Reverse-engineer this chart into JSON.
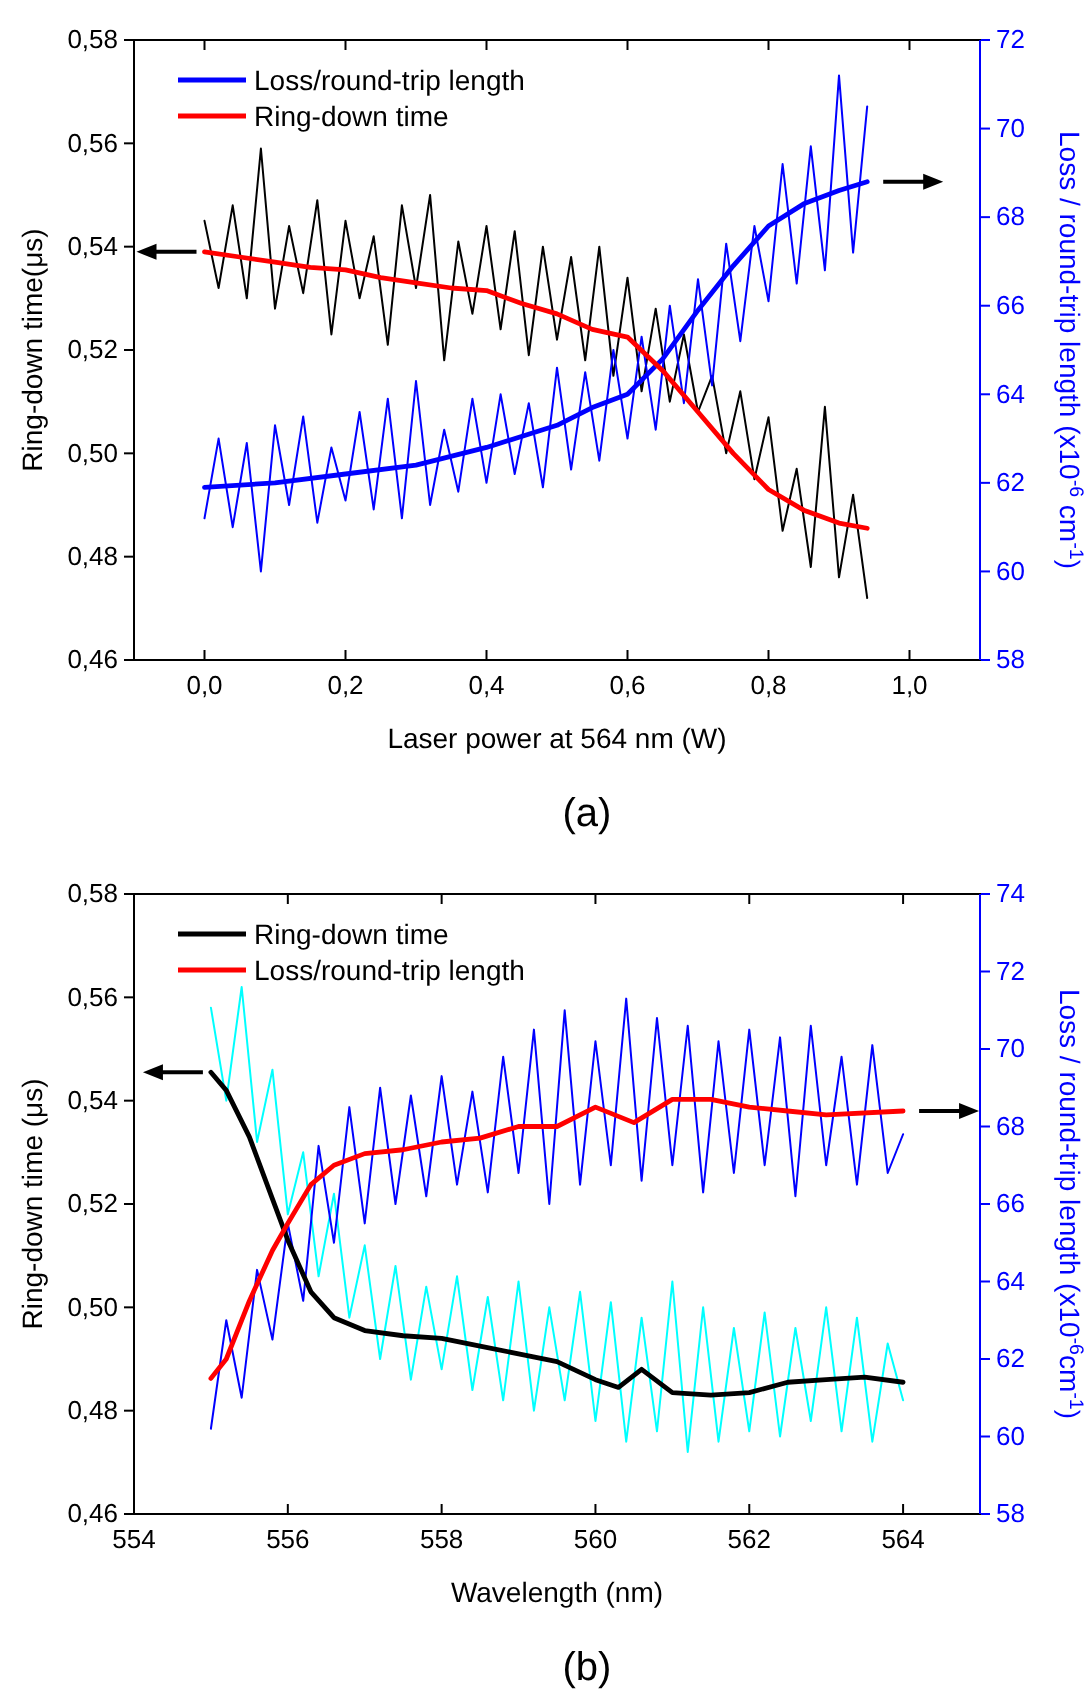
{
  "chart_data": [
    {
      "type": "line",
      "xlabel": "Laser power  at  564 nm (W)",
      "ylabel": "Ring-down time(μs)",
      "y2label": "Loss / round-trip length (x10$^{-6}$ cm$^{-1}$)",
      "annotations": [
        "(a)"
      ],
      "xlim": [
        -0.1,
        1.1
      ],
      "xticks": [
        {
          "value": 0,
          "label": "0,0"
        },
        {
          "value": 0.2,
          "label": "0,2"
        },
        {
          "value": 0.4,
          "label": "0,4"
        },
        {
          "value": 0.6,
          "label": "0,6"
        },
        {
          "value": 0.8,
          "label": "0,8"
        },
        {
          "value": 1,
          "label": "1,0"
        }
      ],
      "ylim": [
        0.46,
        0.58
      ],
      "yticks": [
        {
          "value": 0.46,
          "label": "0,46"
        },
        {
          "value": 0.48,
          "label": "0,48"
        },
        {
          "value": 0.5,
          "label": "0,50"
        },
        {
          "value": 0.52,
          "label": "0,52"
        },
        {
          "value": 0.54,
          "label": "0,54"
        },
        {
          "value": 0.56,
          "label": "0,56"
        },
        {
          "value": 0.58,
          "label": "0,58"
        }
      ],
      "y2lim": [
        58,
        72
      ],
      "y2ticks": [
        58,
        60,
        62,
        64,
        66,
        68,
        70,
        72
      ],
      "grid": false,
      "legend": "top left",
      "marker": "none",
      "line_style": "solid",
      "series": [
        {
          "color": "#000000",
          "x": [
            0,
            0.02,
            0.04,
            0.06,
            0.08,
            0.1,
            0.12,
            0.14,
            0.16,
            0.18,
            0.2,
            0.22,
            0.24,
            0.26,
            0.28,
            0.3,
            0.32,
            0.34,
            0.36,
            0.38,
            0.4,
            0.42,
            0.44,
            0.46,
            0.48,
            0.5,
            0.52,
            0.54,
            0.56,
            0.58,
            0.6,
            0.62,
            0.64,
            0.66,
            0.68,
            0.7,
            0.72,
            0.74,
            0.76,
            0.78,
            0.8,
            0.82,
            0.84,
            0.86,
            0.88,
            0.9,
            0.92,
            0.94
          ],
          "values": [
            0.545,
            0.532,
            0.548,
            0.53,
            0.559,
            0.528,
            0.544,
            0.531,
            0.549,
            0.523,
            0.545,
            0.53,
            0.542,
            0.521,
            0.548,
            0.532,
            0.55,
            0.518,
            0.541,
            0.527,
            0.544,
            0.524,
            0.543,
            0.519,
            0.54,
            0.522,
            0.538,
            0.518,
            0.54,
            0.515,
            0.534,
            0.512,
            0.528,
            0.51,
            0.523,
            0.508,
            0.515,
            0.5,
            0.512,
            0.495,
            0.507,
            0.485,
            0.497,
            0.478,
            0.509,
            0.476,
            0.492,
            0.472
          ]
        },
        {
          "color": "#0000ff",
          "axis": "y2",
          "x": [
            0,
            0.02,
            0.04,
            0.06,
            0.08,
            0.1,
            0.12,
            0.14,
            0.16,
            0.18,
            0.2,
            0.22,
            0.24,
            0.26,
            0.28,
            0.3,
            0.32,
            0.34,
            0.36,
            0.38,
            0.4,
            0.42,
            0.44,
            0.46,
            0.48,
            0.5,
            0.52,
            0.54,
            0.56,
            0.58,
            0.6,
            0.62,
            0.64,
            0.66,
            0.68,
            0.7,
            0.72,
            0.74,
            0.76,
            0.78,
            0.8,
            0.82,
            0.84,
            0.86,
            0.88,
            0.9,
            0.92,
            0.94
          ],
          "values": [
            61.2,
            63,
            61,
            62.9,
            60,
            63.3,
            61.5,
            63.5,
            61.1,
            62.8,
            61.6,
            63.6,
            61.4,
            63.9,
            61.2,
            64.3,
            61.5,
            63.2,
            61.8,
            63.9,
            62,
            64,
            62.2,
            63.8,
            61.9,
            64.6,
            62.3,
            64.5,
            62.5,
            65,
            63,
            65.3,
            63.2,
            66,
            63.8,
            66.6,
            64.2,
            67.4,
            65.2,
            67.8,
            66.1,
            69.2,
            66.5,
            69.6,
            66.8,
            71.2,
            67.2,
            70.5
          ]
        },
        {
          "name": "Loss/round-trip length",
          "color": "#0000ff",
          "axis": "y2",
          "x": [
            0,
            0.1,
            0.2,
            0.3,
            0.4,
            0.5,
            0.55,
            0.6,
            0.65,
            0.7,
            0.75,
            0.8,
            0.85,
            0.9,
            0.94
          ],
          "values": [
            61.9,
            62,
            62.2,
            62.4,
            62.8,
            63.3,
            63.7,
            64,
            64.8,
            65.9,
            66.9,
            67.8,
            68.3,
            68.6,
            68.8
          ]
        },
        {
          "name": "Ring-down time",
          "color": "#ff0000",
          "x": [
            0,
            0.05,
            0.1,
            0.15,
            0.2,
            0.25,
            0.3,
            0.35,
            0.4,
            0.45,
            0.5,
            0.55,
            0.6,
            0.65,
            0.7,
            0.75,
            0.8,
            0.85,
            0.9,
            0.94
          ],
          "values": [
            0.539,
            0.538,
            0.537,
            0.536,
            0.5355,
            0.534,
            0.533,
            0.532,
            0.5315,
            0.529,
            0.527,
            0.524,
            0.5225,
            0.516,
            0.508,
            0.5,
            0.493,
            0.489,
            0.4865,
            0.4855
          ]
        }
      ]
    },
    {
      "type": "line",
      "xlabel": "Wavelength (nm)",
      "ylabel": "Ring-down time (μs)",
      "y2label": "Loss / round-trip length (x10$^{-6}$cm$^{-1}$)",
      "annotations": [
        "(b)"
      ],
      "xlim": [
        554,
        565
      ],
      "xticks": [
        554,
        556,
        558,
        560,
        562,
        564
      ],
      "ylim": [
        0.46,
        0.58
      ],
      "yticks": [
        {
          "value": 0.46,
          "label": "0,46"
        },
        {
          "value": 0.48,
          "label": "0,48"
        },
        {
          "value": 0.5,
          "label": "0,50"
        },
        {
          "value": 0.52,
          "label": "0,52"
        },
        {
          "value": 0.54,
          "label": "0,54"
        },
        {
          "value": 0.56,
          "label": "0,56"
        },
        {
          "value": 0.58,
          "label": "0,58"
        }
      ],
      "y2lim": [
        58,
        74
      ],
      "y2ticks": [
        58,
        60,
        62,
        64,
        66,
        68,
        70,
        72,
        74
      ],
      "grid": false,
      "legend": "top left",
      "marker": "none",
      "line_style": "solid",
      "series": [
        {
          "color": "#00ffff",
          "x": [
            555,
            555.2,
            555.4,
            555.6,
            555.8,
            556,
            556.2,
            556.4,
            556.6,
            556.8,
            557,
            557.2,
            557.4,
            557.6,
            557.8,
            558,
            558.2,
            558.4,
            558.6,
            558.8,
            559,
            559.2,
            559.4,
            559.6,
            559.8,
            560,
            560.2,
            560.4,
            560.6,
            560.8,
            561,
            561.2,
            561.4,
            561.6,
            561.8,
            562,
            562.2,
            562.4,
            562.6,
            562.8,
            563,
            563.2,
            563.4,
            563.6,
            563.8,
            564
          ],
          "values": [
            0.558,
            0.54,
            0.562,
            0.532,
            0.546,
            0.518,
            0.53,
            0.506,
            0.522,
            0.498,
            0.512,
            0.49,
            0.508,
            0.486,
            0.504,
            0.488,
            0.506,
            0.484,
            0.502,
            0.482,
            0.505,
            0.48,
            0.5,
            0.482,
            0.503,
            0.478,
            0.501,
            0.474,
            0.498,
            0.476,
            0.505,
            0.472,
            0.5,
            0.474,
            0.496,
            0.476,
            0.499,
            0.475,
            0.496,
            0.478,
            0.5,
            0.476,
            0.498,
            0.474,
            0.493,
            0.482
          ]
        },
        {
          "color": "#0000ff",
          "axis": "y2",
          "x": [
            555,
            555.2,
            555.4,
            555.6,
            555.8,
            556,
            556.2,
            556.4,
            556.6,
            556.8,
            557,
            557.2,
            557.4,
            557.6,
            557.8,
            558,
            558.2,
            558.4,
            558.6,
            558.8,
            559,
            559.2,
            559.4,
            559.6,
            559.8,
            560,
            560.2,
            560.4,
            560.6,
            560.8,
            561,
            561.2,
            561.4,
            561.6,
            561.8,
            562,
            562.2,
            562.4,
            562.6,
            562.8,
            563,
            563.2,
            563.4,
            563.6,
            563.8,
            564
          ],
          "values": [
            60.2,
            63,
            61,
            64.3,
            62.5,
            65.5,
            63.5,
            67.5,
            65,
            68.5,
            65.5,
            69,
            66,
            68.8,
            66.2,
            69.3,
            66.5,
            68.9,
            66.3,
            69.8,
            66.8,
            70.5,
            66,
            71,
            66.5,
            70.2,
            67,
            71.3,
            66.6,
            70.8,
            67,
            70.6,
            66.3,
            70.2,
            66.8,
            70.5,
            67,
            70.3,
            66.2,
            70.6,
            67,
            69.8,
            66.5,
            70.1,
            66.8,
            67.8
          ]
        },
        {
          "name": "Ring-down time",
          "color": "#000000",
          "x": [
            555,
            555.2,
            555.5,
            555.8,
            556,
            556.3,
            556.6,
            557,
            557.5,
            558,
            558.5,
            559,
            559.5,
            560,
            560.3,
            560.6,
            561,
            561.5,
            562,
            562.5,
            563,
            563.5,
            564
          ],
          "values": [
            0.5455,
            0.542,
            0.533,
            0.521,
            0.513,
            0.503,
            0.498,
            0.4955,
            0.4945,
            0.494,
            0.4925,
            0.491,
            0.4895,
            0.486,
            0.4845,
            0.488,
            0.4835,
            0.483,
            0.4835,
            0.4855,
            0.486,
            0.4865,
            0.4855
          ]
        },
        {
          "name": "Loss/round-trip length",
          "color": "#ff0000",
          "axis": "y2",
          "x": [
            555,
            555.2,
            555.5,
            555.8,
            556,
            556.3,
            556.6,
            557,
            557.5,
            558,
            558.5,
            559,
            559.5,
            560,
            560.5,
            561,
            561.5,
            562,
            562.5,
            563,
            564
          ],
          "values": [
            61.5,
            62,
            63.5,
            64.8,
            65.5,
            66.5,
            67,
            67.3,
            67.4,
            67.6,
            67.7,
            68,
            68,
            68.5,
            68.1,
            68.7,
            68.7,
            68.5,
            68.4,
            68.3,
            68.4
          ]
        }
      ]
    }
  ]
}
